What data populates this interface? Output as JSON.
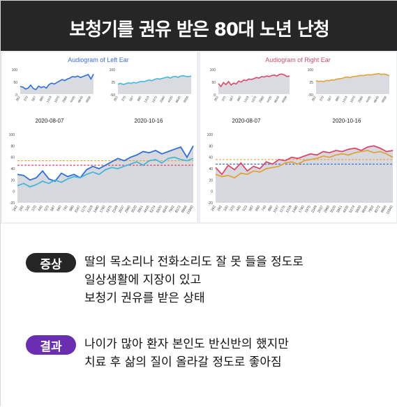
{
  "header": {
    "title": "보청기를 권유 받은 80대 노년 난청"
  },
  "charts": {
    "left_title": "Audiogram of Left Ear",
    "right_title": "Audiogram of Right Ear",
    "date1": "2020-08-07",
    "date2": "2020-10-16",
    "colors": {
      "left": "#2f6fd6",
      "left_light": "#46b6d8",
      "right": "#d9486a",
      "right_orange": "#e0a23a",
      "fill": "#c9ccd4"
    }
  },
  "chart_data": [
    {
      "type": "line",
      "title": "Audiogram of Left Ear",
      "subtitle": "2020-08-07",
      "ylim": [
        0,
        100
      ],
      "x_ticks": [
        "262",
        "292",
        "330",
        "370",
        "440",
        "523",
        "587",
        "660",
        "740",
        "880",
        "1047",
        "1175",
        "1319",
        "1480",
        "1760",
        "1975",
        "2349",
        "2637",
        "2960",
        "3520",
        "3951",
        "4435",
        "5274",
        "5920",
        "6645",
        "7902",
        "8372",
        "9956",
        "11840"
      ],
      "values": [
        30,
        28,
        20,
        24,
        36,
        22,
        18,
        32,
        26,
        30,
        24,
        38,
        44,
        40,
        46,
        52,
        58,
        54,
        60,
        64,
        70,
        68,
        72,
        66,
        70,
        74,
        78,
        60,
        80
      ]
    },
    {
      "type": "line",
      "title": "Audiogram of Left Ear",
      "subtitle": "2020-10-16",
      "ylim": [
        -50,
        100
      ],
      "x_ticks": [
        "262",
        "292",
        "330",
        "370",
        "440",
        "523",
        "587",
        "660",
        "740",
        "880",
        "1047",
        "1175",
        "1319",
        "1480",
        "1760",
        "1975",
        "2349",
        "2637",
        "2960",
        "3520",
        "3951",
        "4435",
        "5274",
        "5920",
        "6645",
        "7902",
        "8372",
        "9956",
        "11840"
      ],
      "values": [
        10,
        14,
        8,
        12,
        18,
        14,
        20,
        16,
        22,
        26,
        24,
        30,
        34,
        30,
        38,
        42,
        40,
        44,
        48,
        52,
        46,
        54,
        56,
        50,
        58,
        60,
        56,
        54,
        58
      ]
    },
    {
      "type": "line",
      "title": "Audiogram of Right Ear",
      "subtitle": "2020-08-07",
      "ylim": [
        0,
        100
      ],
      "x_ticks": [
        "262",
        "292",
        "330",
        "370",
        "440",
        "523",
        "587",
        "660",
        "740",
        "880",
        "1047",
        "1175",
        "1319",
        "1480",
        "1760",
        "1975",
        "2349",
        "2637",
        "2960",
        "3520",
        "3951",
        "4435",
        "5274",
        "5920",
        "6645",
        "7902",
        "8372",
        "9956",
        "11840"
      ],
      "values": [
        42,
        30,
        46,
        38,
        50,
        36,
        44,
        40,
        52,
        48,
        56,
        54,
        60,
        58,
        62,
        66,
        64,
        70,
        68,
        72,
        70,
        74,
        76,
        72,
        78,
        80,
        76,
        70,
        72
      ]
    },
    {
      "type": "line",
      "title": "Audiogram of Right Ear",
      "subtitle": "2020-10-16",
      "ylim": [
        -50,
        100
      ],
      "x_ticks": [
        "262",
        "292",
        "330",
        "370",
        "440",
        "523",
        "587",
        "660",
        "740",
        "880",
        "1047",
        "1175",
        "1319",
        "1480",
        "1760",
        "1975",
        "2349",
        "2637",
        "2960",
        "3520",
        "3951",
        "4435",
        "5274",
        "5920",
        "6645",
        "7902",
        "8372",
        "9956",
        "11840"
      ],
      "values": [
        30,
        26,
        28,
        24,
        32,
        30,
        36,
        34,
        40,
        42,
        44,
        50,
        52,
        48,
        54,
        56,
        58,
        62,
        60,
        64,
        66,
        64,
        68,
        70,
        72,
        68,
        70,
        66,
        60
      ]
    }
  ],
  "symptom": {
    "badge": "증상",
    "lines": [
      "딸의 목소리나 전화소리도 잘 못 들을 정도로",
      "일상생활에 지장이 있고",
      "보청기 권유를 받은 상태"
    ]
  },
  "result": {
    "badge": "결과",
    "lines": [
      "나이가 많아 환자 본인도 반신반의 했지만",
      "치료 후 삶의 질이  올라갈 정도로 좋아짐"
    ]
  }
}
